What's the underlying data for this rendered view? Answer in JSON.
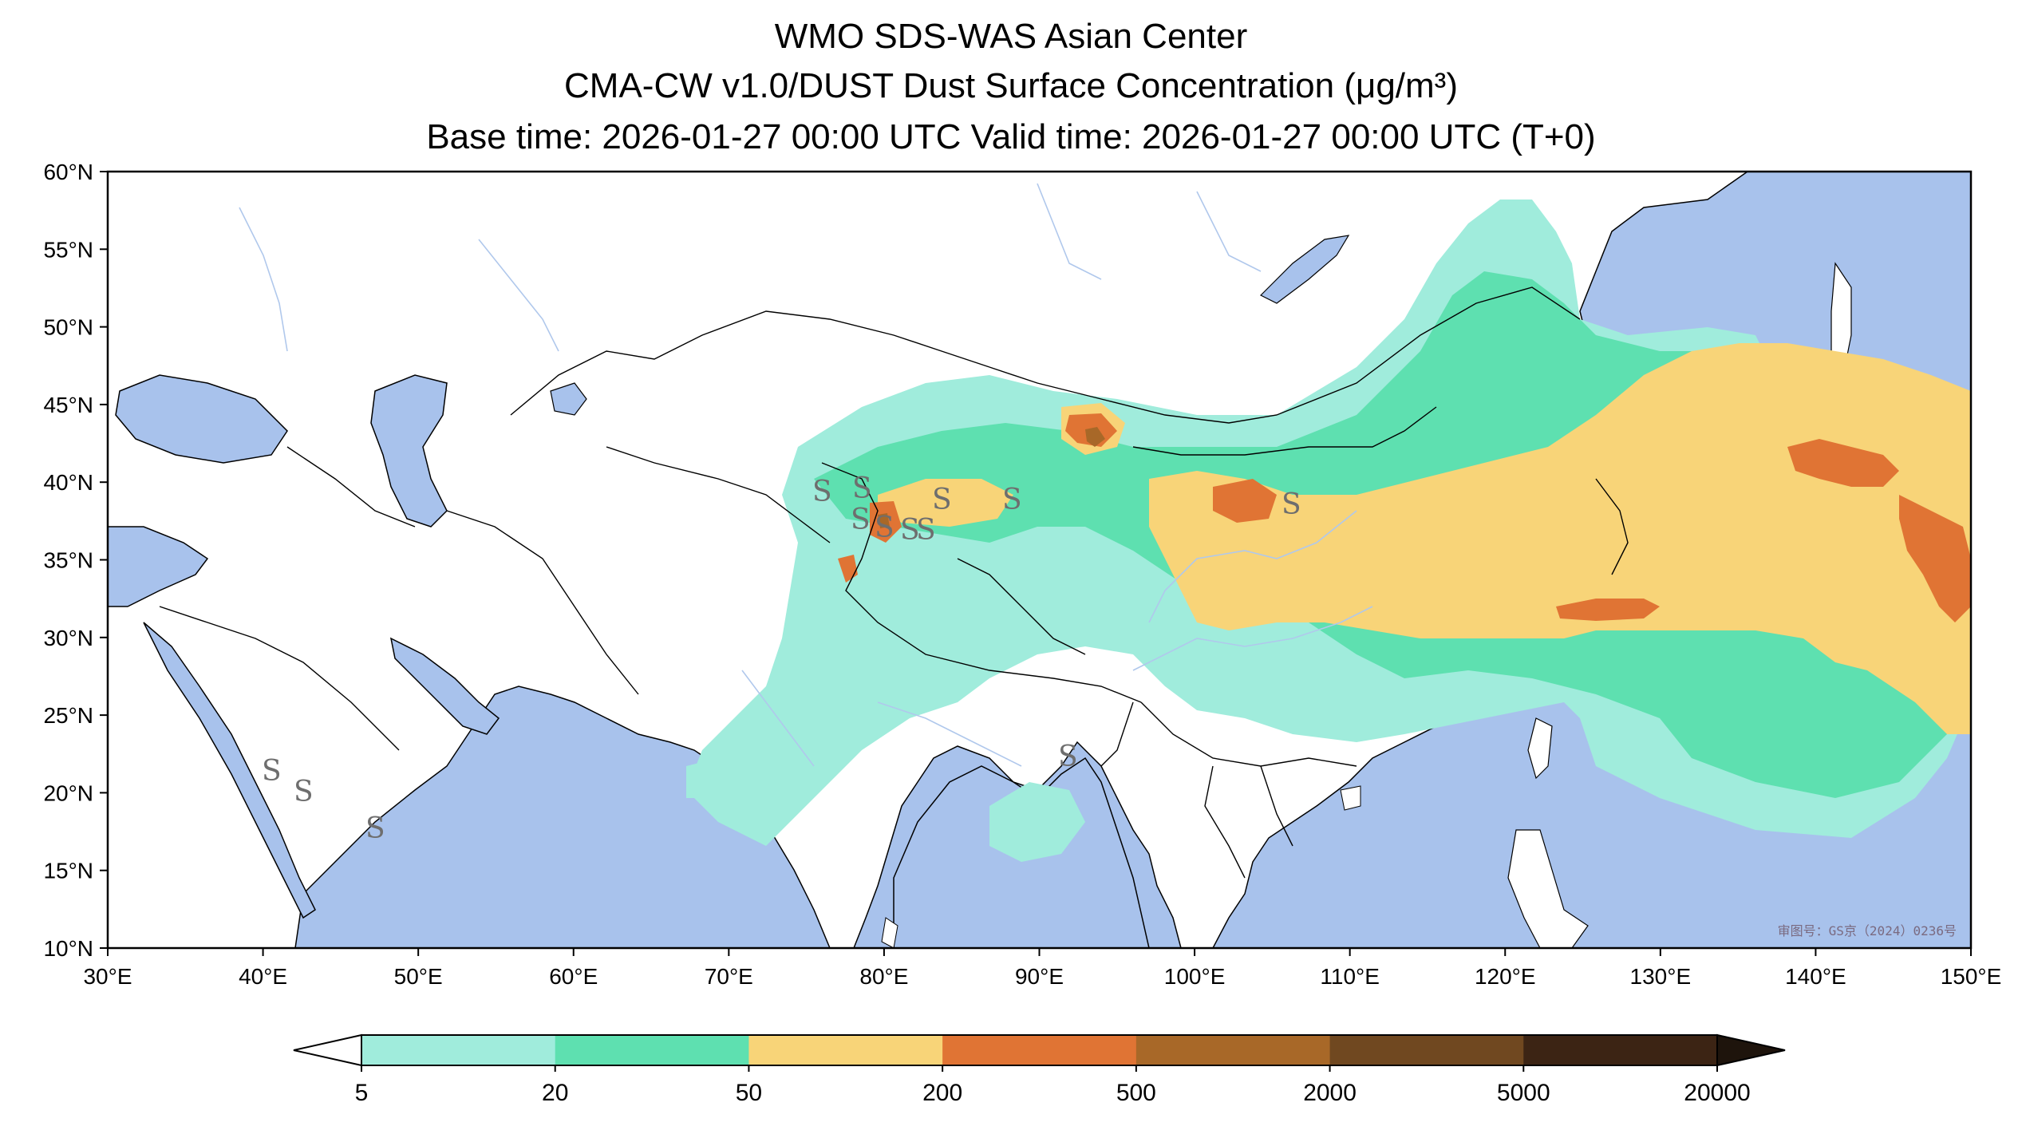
{
  "title": {
    "line1": "WMO SDS-WAS Asian Center",
    "line2": "CMA-CW v1.0/DUST Dust Surface Concentration (μg/m³)",
    "line3": "Base time: 2026-01-27 00:00 UTC Valid time: 2026-01-27 00:00 UTC (T+0)"
  },
  "map": {
    "type": "filled-contour",
    "lon_range": [
      30,
      150
    ],
    "lat_range": [
      10,
      60
    ],
    "lon_ticks": [
      "30°E",
      "40°E",
      "50°E",
      "60°E",
      "70°E",
      "80°E",
      "90°E",
      "100°E",
      "110°E",
      "120°E",
      "130°E",
      "140°E",
      "150°E"
    ],
    "lat_ticks": [
      "60°N",
      "55°N",
      "50°N",
      "45°N",
      "40°N",
      "35°N",
      "30°N",
      "25°N",
      "20°N",
      "15°N",
      "10°N"
    ],
    "watermark": "审图号：GS京（2024）0236号",
    "sandstorm_marker": "S",
    "colors": {
      "ocean": "#a8c2ec",
      "land": "#ffffff",
      "border": "#000000",
      "river": "#b0c8ec"
    }
  },
  "colorbar": {
    "levels": [
      "5",
      "20",
      "50",
      "200",
      "500",
      "2000",
      "5000",
      "20000"
    ],
    "colors": [
      "#a0ecdc",
      "#5ee0b0",
      "#f8d478",
      "#e07434",
      "#a86828",
      "#704820",
      "#3c2414"
    ],
    "under_color": "#ffffff",
    "over_color": "#1e140c"
  }
}
